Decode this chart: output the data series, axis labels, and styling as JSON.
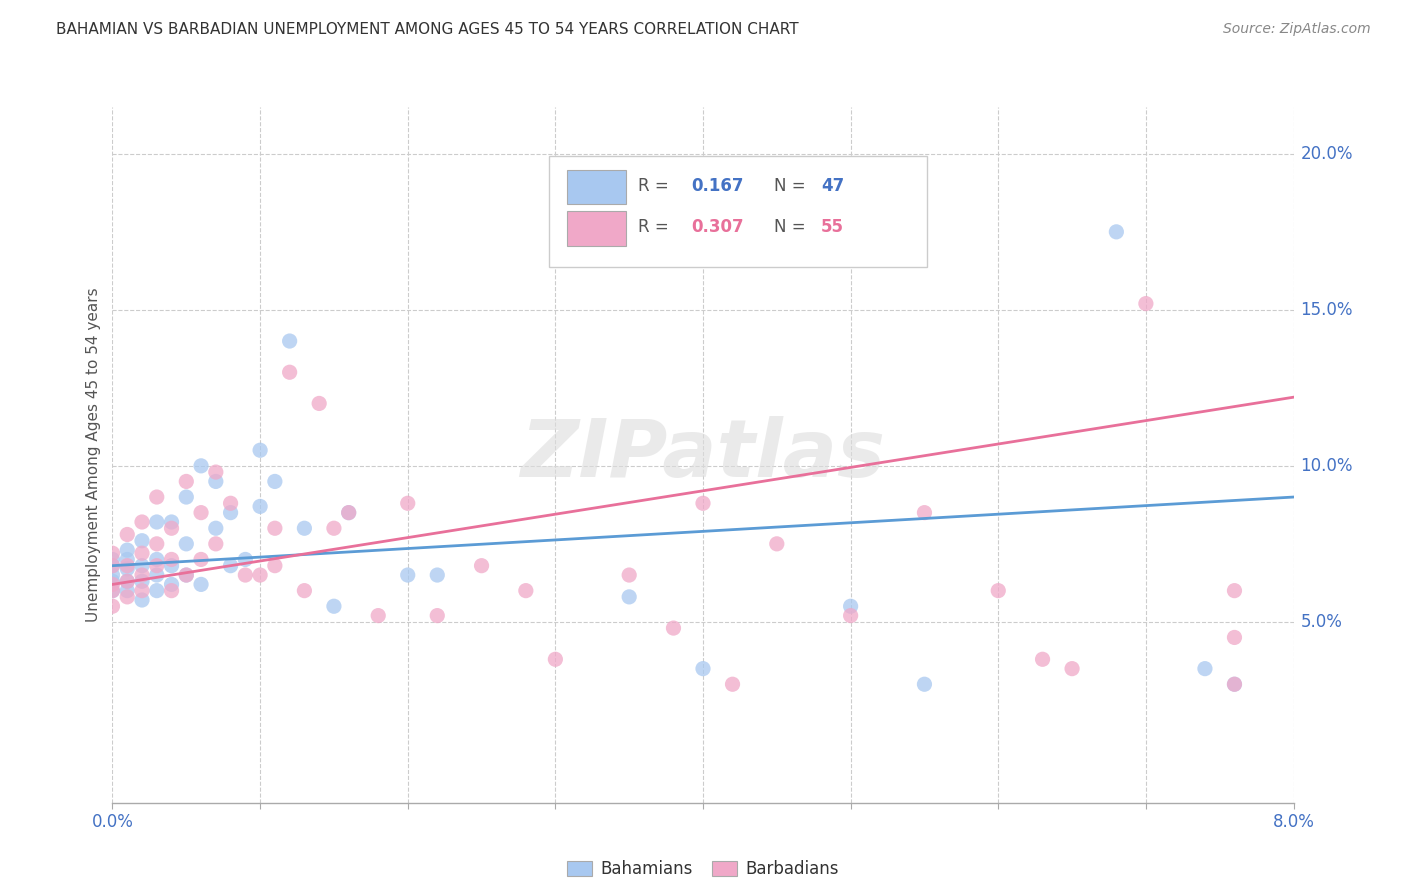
{
  "title": "BAHAMIAN VS BARBADIAN UNEMPLOYMENT AMONG AGES 45 TO 54 YEARS CORRELATION CHART",
  "source": "Source: ZipAtlas.com",
  "ylabel": "Unemployment Among Ages 45 to 54 years",
  "y_ticks": [
    0.05,
    0.1,
    0.15,
    0.2
  ],
  "y_tick_labels": [
    "5.0%",
    "10.0%",
    "15.0%",
    "20.0%"
  ],
  "xlim": [
    0.0,
    0.08
  ],
  "ylim": [
    -0.008,
    0.215
  ],
  "blue_color": "#a8c8f0",
  "pink_color": "#f0a8c8",
  "blue_line_color": "#5b9bd5",
  "pink_line_color": "#e8709a",
  "bahamians_x": [
    0.0,
    0.0,
    0.0,
    0.0,
    0.0,
    0.001,
    0.001,
    0.001,
    0.001,
    0.001,
    0.002,
    0.002,
    0.002,
    0.002,
    0.003,
    0.003,
    0.003,
    0.003,
    0.004,
    0.004,
    0.004,
    0.005,
    0.005,
    0.005,
    0.006,
    0.006,
    0.007,
    0.007,
    0.008,
    0.008,
    0.009,
    0.01,
    0.01,
    0.011,
    0.012,
    0.013,
    0.015,
    0.016,
    0.02,
    0.022,
    0.035,
    0.04,
    0.05,
    0.055,
    0.068,
    0.074,
    0.076
  ],
  "bahamians_y": [
    0.063,
    0.065,
    0.068,
    0.07,
    0.06,
    0.06,
    0.063,
    0.067,
    0.07,
    0.073,
    0.057,
    0.063,
    0.068,
    0.076,
    0.06,
    0.065,
    0.07,
    0.082,
    0.062,
    0.068,
    0.082,
    0.065,
    0.075,
    0.09,
    0.062,
    0.1,
    0.08,
    0.095,
    0.068,
    0.085,
    0.07,
    0.087,
    0.105,
    0.095,
    0.14,
    0.08,
    0.055,
    0.085,
    0.065,
    0.065,
    0.058,
    0.035,
    0.055,
    0.03,
    0.175,
    0.035,
    0.03
  ],
  "barbadians_x": [
    0.0,
    0.0,
    0.0,
    0.0,
    0.0,
    0.001,
    0.001,
    0.001,
    0.001,
    0.002,
    0.002,
    0.002,
    0.002,
    0.003,
    0.003,
    0.003,
    0.004,
    0.004,
    0.004,
    0.005,
    0.005,
    0.006,
    0.006,
    0.007,
    0.007,
    0.008,
    0.009,
    0.01,
    0.011,
    0.011,
    0.012,
    0.013,
    0.014,
    0.015,
    0.016,
    0.018,
    0.02,
    0.022,
    0.025,
    0.028,
    0.03,
    0.035,
    0.038,
    0.04,
    0.042,
    0.045,
    0.05,
    0.055,
    0.06,
    0.063,
    0.065,
    0.07,
    0.076,
    0.076,
    0.076
  ],
  "barbadians_y": [
    0.055,
    0.062,
    0.068,
    0.072,
    0.06,
    0.058,
    0.063,
    0.068,
    0.078,
    0.06,
    0.065,
    0.072,
    0.082,
    0.09,
    0.068,
    0.075,
    0.06,
    0.07,
    0.08,
    0.065,
    0.095,
    0.07,
    0.085,
    0.075,
    0.098,
    0.088,
    0.065,
    0.065,
    0.068,
    0.08,
    0.13,
    0.06,
    0.12,
    0.08,
    0.085,
    0.052,
    0.088,
    0.052,
    0.068,
    0.06,
    0.038,
    0.065,
    0.048,
    0.088,
    0.03,
    0.075,
    0.052,
    0.085,
    0.06,
    0.038,
    0.035,
    0.152,
    0.06,
    0.045,
    0.03
  ],
  "blue_trend_x0": 0.0,
  "blue_trend_x1": 0.08,
  "blue_trend_y0": 0.068,
  "blue_trend_y1": 0.09,
  "pink_trend_x0": 0.0,
  "pink_trend_x1": 0.08,
  "pink_trend_y0": 0.062,
  "pink_trend_y1": 0.122
}
